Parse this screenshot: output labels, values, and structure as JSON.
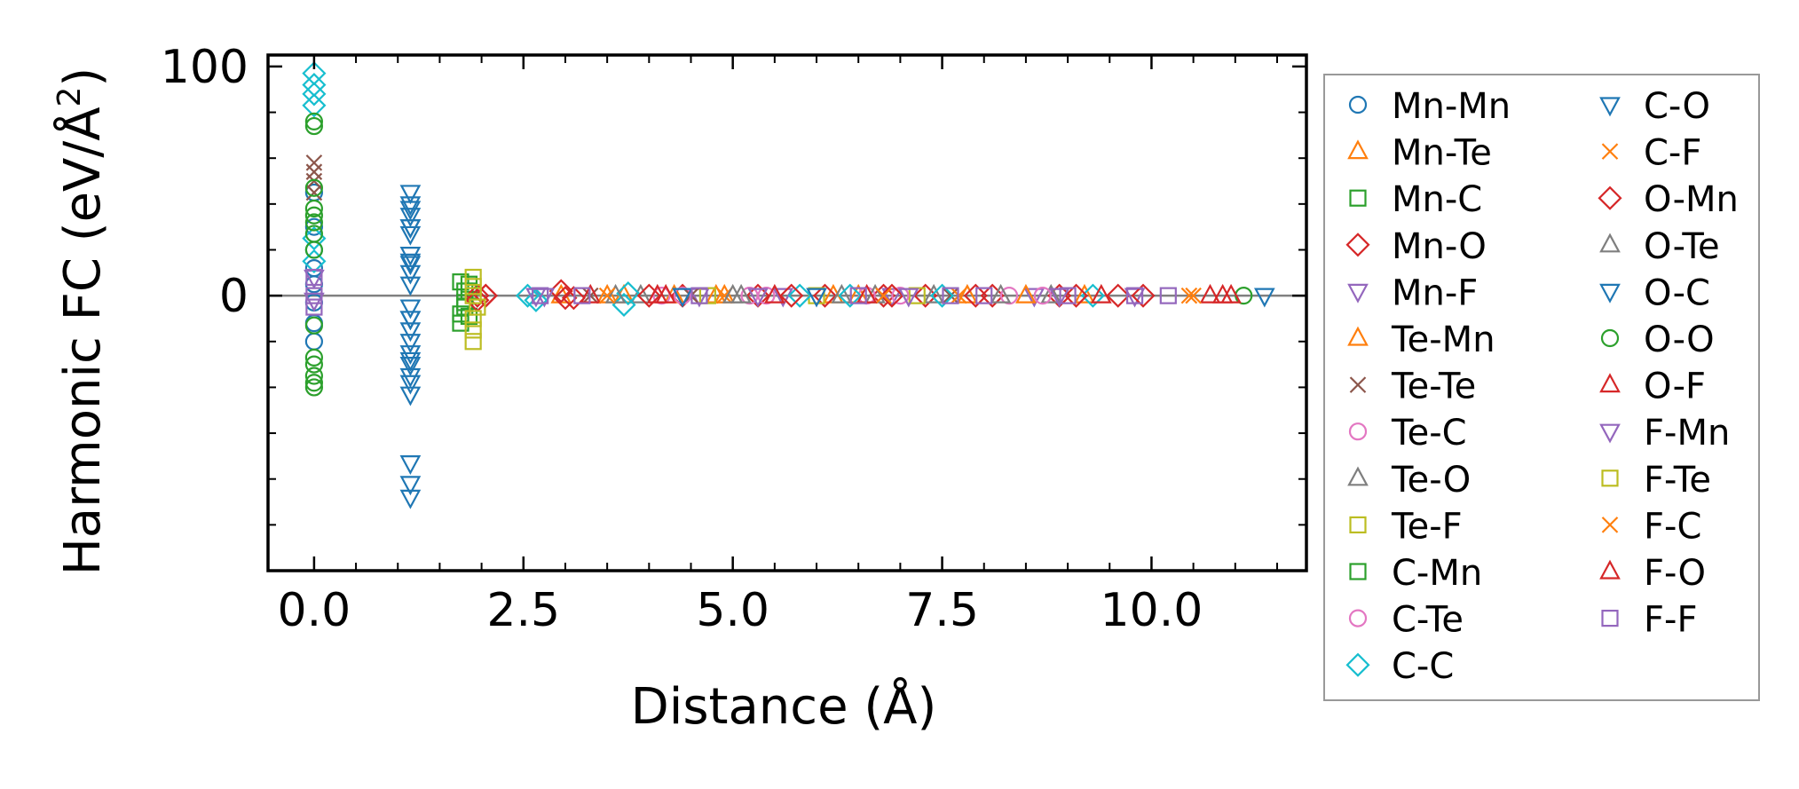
{
  "chart_data": {
    "type": "scatter",
    "title": "",
    "xlabel": "Distance (Å)",
    "ylabel_main": "Harmonic FC (eV/Å",
    "ylabel_sup": "2",
    "ylabel_close": ")",
    "xlim": [
      -0.55,
      11.85
    ],
    "ylim": [
      -120,
      105
    ],
    "xticks": [
      0.0,
      2.5,
      5.0,
      7.5,
      10.0
    ],
    "xtick_labels": [
      "0.0",
      "2.5",
      "5.0",
      "7.5",
      "10.0"
    ],
    "yticks": [
      0,
      100
    ],
    "ytick_labels": [
      "0",
      "100"
    ],
    "grid": false,
    "legend_position": "outside-right",
    "reference_line_y": 0,
    "series": [
      {
        "name": "Mn-Mn",
        "marker": "circle",
        "color": "#1f77b4",
        "points": [
          [
            0,
            45
          ],
          [
            0,
            30
          ],
          [
            0,
            20
          ],
          [
            0,
            12
          ],
          [
            0,
            5
          ],
          [
            0,
            -3
          ],
          [
            0,
            -12
          ],
          [
            0,
            -20
          ]
        ]
      },
      {
        "name": "Mn-Te",
        "marker": "triangle-up",
        "color": "#ff7f0e",
        "points": [
          [
            2.95,
            0
          ],
          [
            3.5,
            0
          ],
          [
            4.3,
            0
          ],
          [
            4.9,
            0
          ],
          [
            6.2,
            0
          ],
          [
            7.8,
            0
          ],
          [
            9.2,
            0
          ]
        ]
      },
      {
        "name": "Mn-C",
        "marker": "square",
        "color": "#2ca02c",
        "points": [
          [
            1.75,
            -12
          ],
          [
            1.8,
            -5
          ],
          [
            1.8,
            2
          ],
          [
            1.85,
            5
          ],
          [
            1.85,
            -9
          ]
        ]
      },
      {
        "name": "Mn-O",
        "marker": "diamond",
        "color": "#d62728",
        "points": [
          [
            1.95,
            0
          ],
          [
            2.05,
            0
          ],
          [
            2.95,
            2
          ],
          [
            3.1,
            -1
          ],
          [
            4.4,
            0
          ],
          [
            5.3,
            0
          ],
          [
            6.1,
            0
          ],
          [
            6.8,
            0
          ],
          [
            7.3,
            0
          ],
          [
            8.1,
            0
          ],
          [
            8.9,
            0
          ],
          [
            9.6,
            0
          ]
        ]
      },
      {
        "name": "Mn-F",
        "marker": "triangle-down",
        "color": "#9467bd",
        "points": [
          [
            0,
            -2
          ],
          [
            0,
            8
          ],
          [
            2.75,
            0
          ],
          [
            4.6,
            0
          ],
          [
            5.6,
            0
          ],
          [
            6.9,
            0
          ],
          [
            8.6,
            0
          ],
          [
            9.8,
            0
          ]
        ]
      },
      {
        "name": "Te-Mn",
        "marker": "triangle-up",
        "color": "#ff7f0e",
        "points": [
          [
            3.7,
            0
          ],
          [
            4.8,
            0
          ],
          [
            6.5,
            0
          ],
          [
            8.5,
            0
          ]
        ]
      },
      {
        "name": "Te-Te",
        "marker": "x",
        "color": "#8c564b",
        "points": [
          [
            0,
            58
          ],
          [
            0,
            54
          ],
          [
            0,
            50
          ],
          [
            0,
            45
          ],
          [
            3.3,
            0
          ],
          [
            4.5,
            0
          ],
          [
            7.6,
            0
          ]
        ]
      },
      {
        "name": "Te-C",
        "marker": "circle",
        "color": "#e377c2",
        "points": [
          [
            4.4,
            0
          ],
          [
            5.2,
            0
          ],
          [
            6.6,
            0
          ],
          [
            8.3,
            0
          ]
        ]
      },
      {
        "name": "Te-O",
        "marker": "triangle-up",
        "color": "#7f7f7f",
        "points": [
          [
            3.9,
            0
          ],
          [
            5.1,
            0
          ],
          [
            6.3,
            0
          ],
          [
            7.4,
            0
          ],
          [
            8.8,
            0
          ]
        ]
      },
      {
        "name": "Te-F",
        "marker": "square",
        "color": "#bcbd22",
        "points": [
          [
            4.7,
            0
          ],
          [
            6.0,
            0
          ],
          [
            7.2,
            0
          ]
        ]
      },
      {
        "name": "C-Mn",
        "marker": "square",
        "color": "#2ca02c",
        "points": [
          [
            1.75,
            -8
          ],
          [
            1.8,
            -3
          ],
          [
            1.85,
            2
          ],
          [
            1.75,
            6
          ]
        ]
      },
      {
        "name": "C-Te",
        "marker": "circle",
        "color": "#e377c2",
        "points": [
          [
            4.15,
            0
          ],
          [
            5.4,
            0
          ],
          [
            7.0,
            0
          ],
          [
            8.7,
            0
          ]
        ]
      },
      {
        "name": "C-C",
        "marker": "diamond",
        "color": "#17becf",
        "points": [
          [
            0,
            97
          ],
          [
            0,
            92
          ],
          [
            0,
            88
          ],
          [
            0,
            83
          ],
          [
            0,
            25
          ],
          [
            0,
            15
          ],
          [
            2.55,
            0
          ],
          [
            2.65,
            -2
          ],
          [
            3.7,
            -4
          ],
          [
            3.75,
            1
          ],
          [
            5.8,
            0
          ],
          [
            6.4,
            0
          ],
          [
            7.5,
            0
          ],
          [
            9.3,
            0
          ]
        ]
      },
      {
        "name": "C-O",
        "marker": "triangle-down",
        "color": "#1f77b4",
        "points": [
          [
            1.15,
            45
          ],
          [
            1.15,
            38
          ],
          [
            1.15,
            35
          ],
          [
            1.15,
            30
          ],
          [
            1.15,
            27
          ],
          [
            1.15,
            18
          ],
          [
            1.15,
            14
          ],
          [
            1.15,
            10
          ],
          [
            1.15,
            5
          ],
          [
            1.15,
            -5
          ],
          [
            1.15,
            -10
          ],
          [
            1.15,
            -15
          ],
          [
            1.15,
            -20
          ],
          [
            1.15,
            -25
          ],
          [
            1.15,
            -30
          ],
          [
            1.15,
            -35
          ],
          [
            1.15,
            -43
          ],
          [
            1.15,
            -73
          ],
          [
            1.15,
            -82
          ],
          [
            1.15,
            -88
          ],
          [
            11.35,
            0
          ]
        ]
      },
      {
        "name": "C-F",
        "marker": "x",
        "color": "#ff7f0e",
        "points": [
          [
            4.9,
            0
          ],
          [
            7.7,
            0
          ],
          [
            10.45,
            0
          ]
        ]
      },
      {
        "name": "O-Mn",
        "marker": "diamond",
        "color": "#d62728",
        "points": [
          [
            1.95,
            -2
          ],
          [
            2.05,
            0
          ],
          [
            3.0,
            -1
          ],
          [
            4.0,
            0
          ],
          [
            5.7,
            0
          ],
          [
            6.9,
            0
          ],
          [
            7.9,
            0
          ],
          [
            9.1,
            0
          ],
          [
            9.9,
            0
          ]
        ]
      },
      {
        "name": "O-Te",
        "marker": "triangle-up",
        "color": "#7f7f7f",
        "points": [
          [
            3.6,
            0
          ],
          [
            5.0,
            0
          ],
          [
            6.7,
            0
          ],
          [
            8.2,
            0
          ]
        ]
      },
      {
        "name": "O-C",
        "marker": "triangle-down",
        "color": "#1f77b4",
        "points": [
          [
            1.15,
            40
          ],
          [
            1.15,
            30
          ],
          [
            1.15,
            15
          ],
          [
            1.15,
            -10
          ],
          [
            1.15,
            -28
          ],
          [
            1.15,
            -38
          ],
          [
            4.4,
            0
          ],
          [
            6.0,
            0
          ]
        ]
      },
      {
        "name": "O-O",
        "marker": "circle",
        "color": "#2ca02c",
        "points": [
          [
            0,
            76
          ],
          [
            0,
            74
          ],
          [
            0,
            47
          ],
          [
            0,
            38
          ],
          [
            0,
            35
          ],
          [
            0,
            32
          ],
          [
            0,
            27
          ],
          [
            0,
            20
          ],
          [
            0,
            -13
          ],
          [
            0,
            -27
          ],
          [
            0,
            -30
          ],
          [
            0,
            -35
          ],
          [
            0,
            -38
          ],
          [
            0,
            -40
          ],
          [
            11.1,
            0
          ]
        ]
      },
      {
        "name": "O-F",
        "marker": "triangle-up",
        "color": "#d62728",
        "points": [
          [
            3.3,
            0
          ],
          [
            4.2,
            0
          ],
          [
            5.5,
            0
          ],
          [
            10.7,
            0
          ],
          [
            10.85,
            0
          ],
          [
            10.95,
            0
          ]
        ]
      },
      {
        "name": "F-Mn",
        "marker": "triangle-down",
        "color": "#9467bd",
        "points": [
          [
            2.65,
            0
          ],
          [
            5.3,
            0
          ],
          [
            7.1,
            0
          ],
          [
            8.9,
            0
          ]
        ]
      },
      {
        "name": "F-Te",
        "marker": "square",
        "color": "#bcbd22",
        "points": [
          [
            1.9,
            8
          ],
          [
            1.9,
            4
          ],
          [
            1.9,
            0
          ],
          [
            1.95,
            -5
          ],
          [
            1.9,
            -10
          ],
          [
            1.9,
            -15
          ],
          [
            1.9,
            -20
          ]
        ]
      },
      {
        "name": "F-C",
        "marker": "x",
        "color": "#ff7f0e",
        "points": [
          [
            3.5,
            0
          ],
          [
            6.8,
            0
          ],
          [
            10.5,
            0
          ]
        ]
      },
      {
        "name": "F-O",
        "marker": "triangle-up",
        "color": "#d62728",
        "points": [
          [
            4.1,
            0
          ],
          [
            6.6,
            0
          ],
          [
            9.4,
            0
          ]
        ]
      },
      {
        "name": "F-F",
        "marker": "square",
        "color": "#9467bd",
        "points": [
          [
            0,
            8
          ],
          [
            0,
            0
          ],
          [
            0,
            -5
          ],
          [
            2.7,
            0
          ],
          [
            3.2,
            0
          ],
          [
            4.6,
            0
          ],
          [
            6.5,
            0
          ],
          [
            7.6,
            0
          ],
          [
            8.0,
            0
          ],
          [
            9.0,
            0
          ],
          [
            9.8,
            0
          ],
          [
            10.2,
            0
          ]
        ]
      }
    ]
  }
}
